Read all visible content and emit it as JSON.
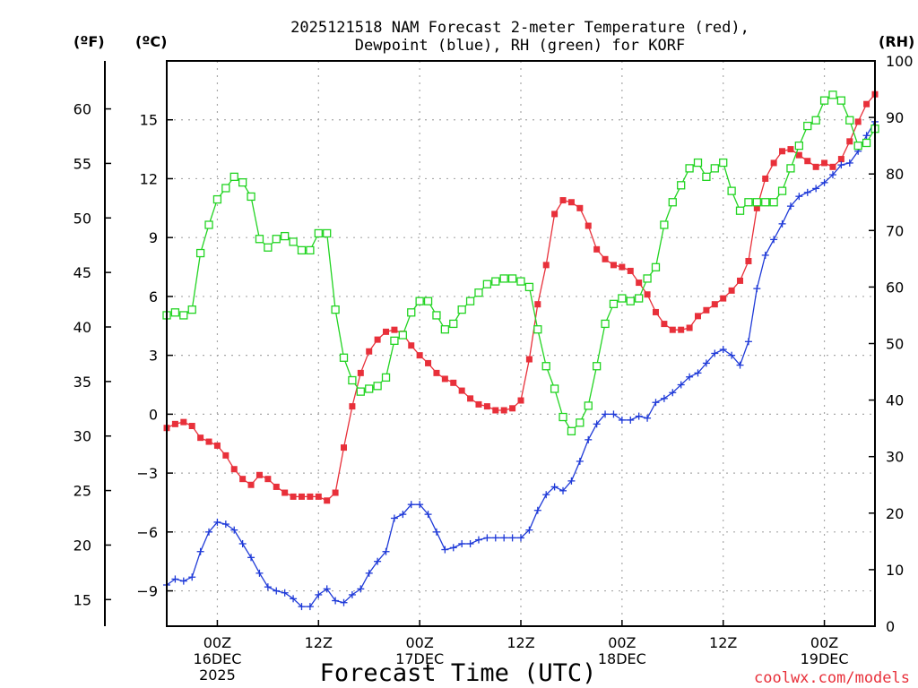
{
  "colors": {
    "temperature": "#e8303a",
    "dewpoint": "#1f3ad8",
    "rh": "#22d422",
    "credit": "#e8303a",
    "grid": "#a8a8a8"
  },
  "chart_data": {
    "type": "line",
    "title_line1": "2025121518 NAM Forecast 2-meter Temperature (red),",
    "title_line2": "Dewpoint (blue), RH (green) for KORF",
    "xlabel": "Forecast Time (UTC)",
    "credit": "coolwx.com/models",
    "unit_f": "(ºF)",
    "unit_c": "(ºC)",
    "unit_rh": "(RH)",
    "x_unit": "hours from 2025-12-15 18Z",
    "x_range": [
      0,
      84
    ],
    "x_ticks": [
      {
        "x": 6,
        "line1": "00Z",
        "line2": "16DEC",
        "line3": "2025"
      },
      {
        "x": 18,
        "line1": "12Z",
        "line2": "",
        "line3": ""
      },
      {
        "x": 30,
        "line1": "00Z",
        "line2": "17DEC",
        "line3": ""
      },
      {
        "x": 42,
        "line1": "12Z",
        "line2": "",
        "line3": ""
      },
      {
        "x": 54,
        "line1": "00Z",
        "line2": "18DEC",
        "line3": ""
      },
      {
        "x": 66,
        "line1": "12Z",
        "line2": "",
        "line3": ""
      },
      {
        "x": 78,
        "line1": "00Z",
        "line2": "19DEC",
        "line3": ""
      }
    ],
    "celsius_axis": {
      "range": [
        -10.8,
        18.0
      ],
      "ticks": [
        -9,
        -6,
        -3,
        0,
        3,
        6,
        9,
        12,
        15
      ]
    },
    "fahrenheit_axis": {
      "ticks": [
        15,
        20,
        25,
        30,
        35,
        40,
        45,
        50,
        55,
        60
      ]
    },
    "rh_axis": {
      "range": [
        0,
        100
      ],
      "ticks": [
        0,
        10,
        20,
        30,
        40,
        50,
        60,
        70,
        80,
        90,
        100
      ]
    },
    "series": [
      {
        "name": "Temperature",
        "units": "C",
        "color": "#e8303a",
        "marker": "filled-square",
        "axis": "celsius",
        "points": [
          [
            0,
            -0.7
          ],
          [
            1,
            -0.5
          ],
          [
            2,
            -0.4
          ],
          [
            3,
            -0.6
          ],
          [
            4,
            -1.2
          ],
          [
            5,
            -1.4
          ],
          [
            6,
            -1.6
          ],
          [
            7,
            -2.1
          ],
          [
            8,
            -2.8
          ],
          [
            9,
            -3.3
          ],
          [
            10,
            -3.6
          ],
          [
            11,
            -3.1
          ],
          [
            12,
            -3.3
          ],
          [
            13,
            -3.7
          ],
          [
            14,
            -4.0
          ],
          [
            15,
            -4.2
          ],
          [
            16,
            -4.2
          ],
          [
            17,
            -4.2
          ],
          [
            18,
            -4.2
          ],
          [
            19,
            -4.4
          ],
          [
            20,
            -4.0
          ],
          [
            21,
            -1.7
          ],
          [
            22,
            0.4
          ],
          [
            23,
            2.1
          ],
          [
            24,
            3.2
          ],
          [
            25,
            3.8
          ],
          [
            26,
            4.2
          ],
          [
            27,
            4.3
          ],
          [
            28,
            4.1
          ],
          [
            29,
            3.5
          ],
          [
            30,
            3.0
          ],
          [
            31,
            2.6
          ],
          [
            32,
            2.1
          ],
          [
            33,
            1.8
          ],
          [
            34,
            1.6
          ],
          [
            35,
            1.2
          ],
          [
            36,
            0.8
          ],
          [
            37,
            0.5
          ],
          [
            38,
            0.4
          ],
          [
            39,
            0.2
          ],
          [
            40,
            0.2
          ],
          [
            41,
            0.3
          ],
          [
            42,
            0.7
          ],
          [
            43,
            2.8
          ],
          [
            44,
            5.6
          ],
          [
            45,
            7.6
          ],
          [
            46,
            10.2
          ],
          [
            47,
            10.9
          ],
          [
            48,
            10.8
          ],
          [
            49,
            10.5
          ],
          [
            50,
            9.6
          ],
          [
            51,
            8.4
          ],
          [
            52,
            7.9
          ],
          [
            53,
            7.6
          ],
          [
            54,
            7.5
          ],
          [
            55,
            7.3
          ],
          [
            56,
            6.7
          ],
          [
            57,
            6.1
          ],
          [
            58,
            5.2
          ],
          [
            59,
            4.6
          ],
          [
            60,
            4.3
          ],
          [
            61,
            4.3
          ],
          [
            62,
            4.4
          ],
          [
            63,
            5.0
          ],
          [
            64,
            5.3
          ],
          [
            65,
            5.6
          ],
          [
            66,
            5.9
          ],
          [
            67,
            6.3
          ],
          [
            68,
            6.8
          ],
          [
            69,
            7.8
          ],
          [
            70,
            10.5
          ],
          [
            71,
            12.0
          ],
          [
            72,
            12.8
          ],
          [
            73,
            13.4
          ],
          [
            74,
            13.5
          ],
          [
            75,
            13.2
          ],
          [
            76,
            12.9
          ],
          [
            77,
            12.6
          ],
          [
            78,
            12.8
          ],
          [
            79,
            12.6
          ],
          [
            80,
            13.0
          ],
          [
            81,
            13.9
          ],
          [
            82,
            14.9
          ],
          [
            83,
            15.8
          ],
          [
            84,
            16.3
          ]
        ]
      },
      {
        "name": "Dewpoint",
        "units": "C",
        "color": "#1f3ad8",
        "marker": "plus",
        "axis": "celsius",
        "points": [
          [
            0,
            -8.7
          ],
          [
            1,
            -8.4
          ],
          [
            2,
            -8.5
          ],
          [
            3,
            -8.3
          ],
          [
            4,
            -7.0
          ],
          [
            5,
            -6.0
          ],
          [
            6,
            -5.5
          ],
          [
            7,
            -5.6
          ],
          [
            8,
            -5.9
          ],
          [
            9,
            -6.6
          ],
          [
            10,
            -7.3
          ],
          [
            11,
            -8.1
          ],
          [
            12,
            -8.8
          ],
          [
            13,
            -9.0
          ],
          [
            14,
            -9.1
          ],
          [
            15,
            -9.4
          ],
          [
            16,
            -9.8
          ],
          [
            17,
            -9.8
          ],
          [
            18,
            -9.2
          ],
          [
            19,
            -8.9
          ],
          [
            20,
            -9.5
          ],
          [
            21,
            -9.6
          ],
          [
            22,
            -9.2
          ],
          [
            23,
            -8.9
          ],
          [
            24,
            -8.1
          ],
          [
            25,
            -7.5
          ],
          [
            26,
            -7.0
          ],
          [
            27,
            -5.3
          ],
          [
            28,
            -5.1
          ],
          [
            29,
            -4.6
          ],
          [
            30,
            -4.6
          ],
          [
            31,
            -5.1
          ],
          [
            32,
            -6.0
          ],
          [
            33,
            -6.9
          ],
          [
            34,
            -6.8
          ],
          [
            35,
            -6.6
          ],
          [
            36,
            -6.6
          ],
          [
            37,
            -6.4
          ],
          [
            38,
            -6.3
          ],
          [
            39,
            -6.3
          ],
          [
            40,
            -6.3
          ],
          [
            41,
            -6.3
          ],
          [
            42,
            -6.3
          ],
          [
            43,
            -5.9
          ],
          [
            44,
            -4.9
          ],
          [
            45,
            -4.1
          ],
          [
            46,
            -3.7
          ],
          [
            47,
            -3.9
          ],
          [
            48,
            -3.4
          ],
          [
            49,
            -2.4
          ],
          [
            50,
            -1.3
          ],
          [
            51,
            -0.5
          ],
          [
            52,
            0.0
          ],
          [
            53,
            0.0
          ],
          [
            54,
            -0.3
          ],
          [
            55,
            -0.3
          ],
          [
            56,
            -0.1
          ],
          [
            57,
            -0.2
          ],
          [
            58,
            0.6
          ],
          [
            59,
            0.8
          ],
          [
            60,
            1.1
          ],
          [
            61,
            1.5
          ],
          [
            62,
            1.9
          ],
          [
            63,
            2.1
          ],
          [
            64,
            2.6
          ],
          [
            65,
            3.1
          ],
          [
            66,
            3.3
          ],
          [
            67,
            3.0
          ],
          [
            68,
            2.5
          ],
          [
            69,
            3.7
          ],
          [
            70,
            6.4
          ],
          [
            71,
            8.1
          ],
          [
            72,
            8.9
          ],
          [
            73,
            9.7
          ],
          [
            74,
            10.6
          ],
          [
            75,
            11.1
          ],
          [
            76,
            11.3
          ],
          [
            77,
            11.5
          ],
          [
            78,
            11.8
          ],
          [
            79,
            12.2
          ],
          [
            80,
            12.7
          ],
          [
            81,
            12.8
          ],
          [
            82,
            13.4
          ],
          [
            83,
            14.2
          ],
          [
            84,
            14.9
          ]
        ]
      },
      {
        "name": "RH",
        "units": "%",
        "color": "#22d422",
        "marker": "open-square",
        "axis": "rh",
        "points": [
          [
            0,
            55
          ],
          [
            1,
            55.5
          ],
          [
            2,
            55
          ],
          [
            3,
            56
          ],
          [
            4,
            66
          ],
          [
            5,
            71
          ],
          [
            6,
            75.5
          ],
          [
            7,
            77.5
          ],
          [
            8,
            79.5
          ],
          [
            9,
            78.5
          ],
          [
            10,
            76
          ],
          [
            11,
            68.5
          ],
          [
            12,
            67
          ],
          [
            13,
            68.5
          ],
          [
            14,
            69
          ],
          [
            15,
            68
          ],
          [
            16,
            66.5
          ],
          [
            17,
            66.5
          ],
          [
            18,
            69.5
          ],
          [
            19,
            69.5
          ],
          [
            20,
            56
          ],
          [
            21,
            47.5
          ],
          [
            22,
            43.5
          ],
          [
            23,
            41.5
          ],
          [
            24,
            42
          ],
          [
            25,
            42.5
          ],
          [
            26,
            44
          ],
          [
            27,
            50.5
          ],
          [
            28,
            51.5
          ],
          [
            29,
            55.5
          ],
          [
            30,
            57.5
          ],
          [
            31,
            57.5
          ],
          [
            32,
            55
          ],
          [
            33,
            52.5
          ],
          [
            34,
            53.5
          ],
          [
            35,
            56
          ],
          [
            36,
            57.5
          ],
          [
            37,
            59
          ],
          [
            38,
            60.5
          ],
          [
            39,
            61
          ],
          [
            40,
            61.5
          ],
          [
            41,
            61.5
          ],
          [
            42,
            61
          ],
          [
            43,
            60
          ],
          [
            44,
            52.5
          ],
          [
            45,
            46
          ],
          [
            46,
            42
          ],
          [
            47,
            37
          ],
          [
            48,
            34.5
          ],
          [
            49,
            36
          ],
          [
            50,
            39
          ],
          [
            51,
            46
          ],
          [
            52,
            53.5
          ],
          [
            53,
            57
          ],
          [
            54,
            58
          ],
          [
            55,
            57.5
          ],
          [
            56,
            58
          ],
          [
            57,
            61.5
          ],
          [
            58,
            63.5
          ],
          [
            59,
            71
          ],
          [
            60,
            75
          ],
          [
            61,
            78
          ],
          [
            62,
            81
          ],
          [
            63,
            82
          ],
          [
            64,
            79.5
          ],
          [
            65,
            81
          ],
          [
            66,
            82
          ],
          [
            67,
            77
          ],
          [
            68,
            73.5
          ],
          [
            69,
            75
          ],
          [
            70,
            75
          ],
          [
            71,
            75
          ],
          [
            72,
            75
          ],
          [
            73,
            77
          ],
          [
            74,
            81
          ],
          [
            75,
            85
          ],
          [
            76,
            88.5
          ],
          [
            77,
            89.5
          ],
          [
            78,
            93
          ],
          [
            79,
            94
          ],
          [
            80,
            93
          ],
          [
            81,
            89.5
          ],
          [
            82,
            85
          ],
          [
            83,
            85.5
          ],
          [
            84,
            88
          ]
        ]
      }
    ]
  }
}
